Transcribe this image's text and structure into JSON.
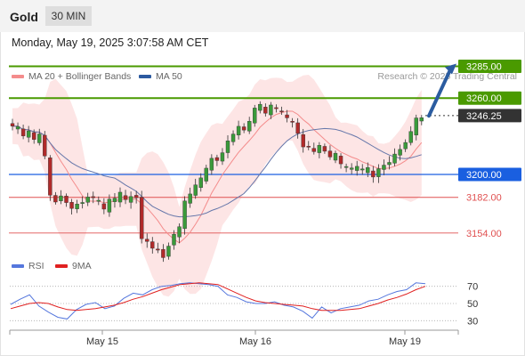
{
  "header": {
    "asset": "Gold",
    "timeframe": "30 MIN"
  },
  "timestamp": "Monday, May 19, 2025 3:07:58 AM CET",
  "legend": {
    "bb": {
      "label": "MA 20 + Bollinger Bands",
      "color": "#f48c8c"
    },
    "ma50": {
      "label": "MA 50",
      "color": "#2c5aa0"
    },
    "credit": "Research © 2025 Trading Central"
  },
  "rsi_legend": {
    "rsi": {
      "label": "RSI",
      "color": "#5577dd"
    },
    "ma": {
      "label": "9MA",
      "color": "#e02020"
    }
  },
  "chart_data": {
    "type": "candlestick",
    "instrument": "Gold",
    "timeframe": "30 MIN",
    "x_labels": [
      "May 15",
      "May 16",
      "May 19"
    ],
    "y_range": [
      3130,
      3296
    ],
    "levels": [
      {
        "label": "3285.00",
        "value": 3285,
        "color": "#4a9a00",
        "kind": "resistance"
      },
      {
        "label": "3260.00",
        "value": 3260,
        "color": "#4a9a00",
        "kind": "resistance"
      },
      {
        "label": "3246.25",
        "value": 3246.25,
        "color": "#333333",
        "kind": "last-price"
      },
      {
        "label": "3200.00",
        "value": 3200,
        "color": "#1a5fe0",
        "kind": "pivot"
      },
      {
        "label": "3182.00",
        "value": 3182,
        "color": "#e05050",
        "kind": "support"
      },
      {
        "label": "3154.00",
        "value": 3154,
        "color": "#e05050",
        "kind": "support"
      }
    ],
    "arrow": {
      "from": 3246,
      "to": 3285,
      "direction": "up"
    },
    "candles_anchor": [
      3240,
      3236,
      3232,
      3234,
      3228,
      3232,
      3214,
      3185,
      3183,
      3187,
      3180,
      3176,
      3182,
      3180,
      3185,
      3182,
      3178,
      3173,
      3180,
      3182,
      3185,
      3180,
      3182,
      3186,
      3155,
      3152,
      3146,
      3147,
      3140,
      3148,
      3151,
      3158,
      3180,
      3185,
      3193,
      3197,
      3203,
      3211,
      3215,
      3220,
      3230,
      3234,
      3242,
      3240,
      3245,
      3251,
      3256,
      3248,
      3256,
      3254,
      3250,
      3246,
      3244,
      3236,
      3226,
      3224,
      3222,
      3228,
      3223,
      3219,
      3218,
      3210,
      3205,
      3207,
      3208,
      3206,
      3205,
      3203,
      3209,
      3212,
      3214,
      3220,
      3225,
      3231,
      3239,
      3244,
      3246
    ],
    "rsi": {
      "levels": [
        70,
        50,
        30
      ],
      "values": [
        49,
        55,
        60,
        47,
        40,
        34,
        32,
        43,
        49,
        51,
        44,
        47,
        56,
        62,
        60,
        66,
        70,
        71,
        73,
        74,
        73,
        72,
        70,
        60,
        57,
        52,
        50,
        50,
        52,
        48,
        46,
        41,
        33,
        46,
        39,
        44,
        46,
        48,
        53,
        55,
        60,
        64,
        66,
        74,
        73
      ],
      "ma_values": [
        44,
        47,
        50,
        51,
        50,
        46,
        43,
        42,
        43,
        44,
        46,
        48,
        51,
        55,
        58,
        62,
        66,
        69,
        72,
        73,
        74,
        73,
        72,
        67,
        62,
        57,
        53,
        51,
        50,
        49,
        48,
        47,
        44,
        42,
        42,
        42,
        43,
        44,
        47,
        50,
        54,
        57,
        61,
        66,
        70
      ],
      "y_range": [
        20,
        80
      ]
    }
  }
}
